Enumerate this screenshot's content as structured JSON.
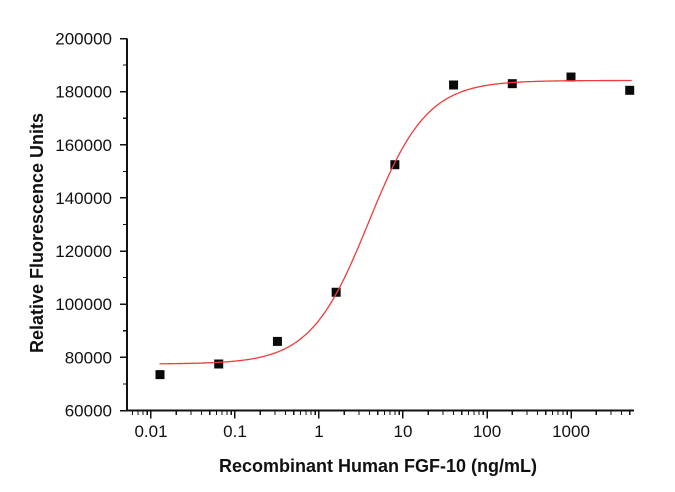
{
  "chart_data": {
    "type": "scatter",
    "title": "",
    "xlabel": "Recombinant Human FGF-10 (ng/mL)",
    "ylabel": "Relative Fluorescence Units",
    "x_scale": "log",
    "xlim": [
      0.00518,
      5623
    ],
    "ylim": [
      60000,
      200000
    ],
    "x_major_ticks": [
      0.01,
      0.1,
      1,
      10,
      100,
      1000
    ],
    "x_tick_labels": [
      "0.01",
      "0.1",
      "1",
      "10",
      "100",
      "1000"
    ],
    "y_major_ticks": [
      60000,
      80000,
      100000,
      120000,
      140000,
      160000,
      180000,
      200000
    ],
    "y_minor_tick_step": 10000,
    "grid": false,
    "legend_position": "none",
    "series": [
      {
        "name": "FGF-10 dose response",
        "kind": "scatter",
        "marker": "square",
        "color": "#0a0a0a",
        "points": [
          {
            "x": 0.0128,
            "y": 73500
          },
          {
            "x": 0.064,
            "y": 77500
          },
          {
            "x": 0.32,
            "y": 86000
          },
          {
            "x": 1.6,
            "y": 104500
          },
          {
            "x": 8,
            "y": 152500
          },
          {
            "x": 40,
            "y": 182500
          },
          {
            "x": 200,
            "y": 183000
          },
          {
            "x": 1000,
            "y": 185500
          },
          {
            "x": 5000,
            "y": 180500
          }
        ]
      },
      {
        "name": "4PL sigmoidal fit",
        "kind": "curve",
        "color": "#ef3b3b",
        "model": "4PL",
        "params": {
          "bottom": 77500,
          "top": 184200,
          "ec50": 3.9,
          "hill": 1.25
        },
        "x_range": [
          0.0128,
          5200
        ]
      }
    ],
    "colors": {
      "axis": "#111111",
      "text": "#111111",
      "background": "#ffffff"
    }
  }
}
